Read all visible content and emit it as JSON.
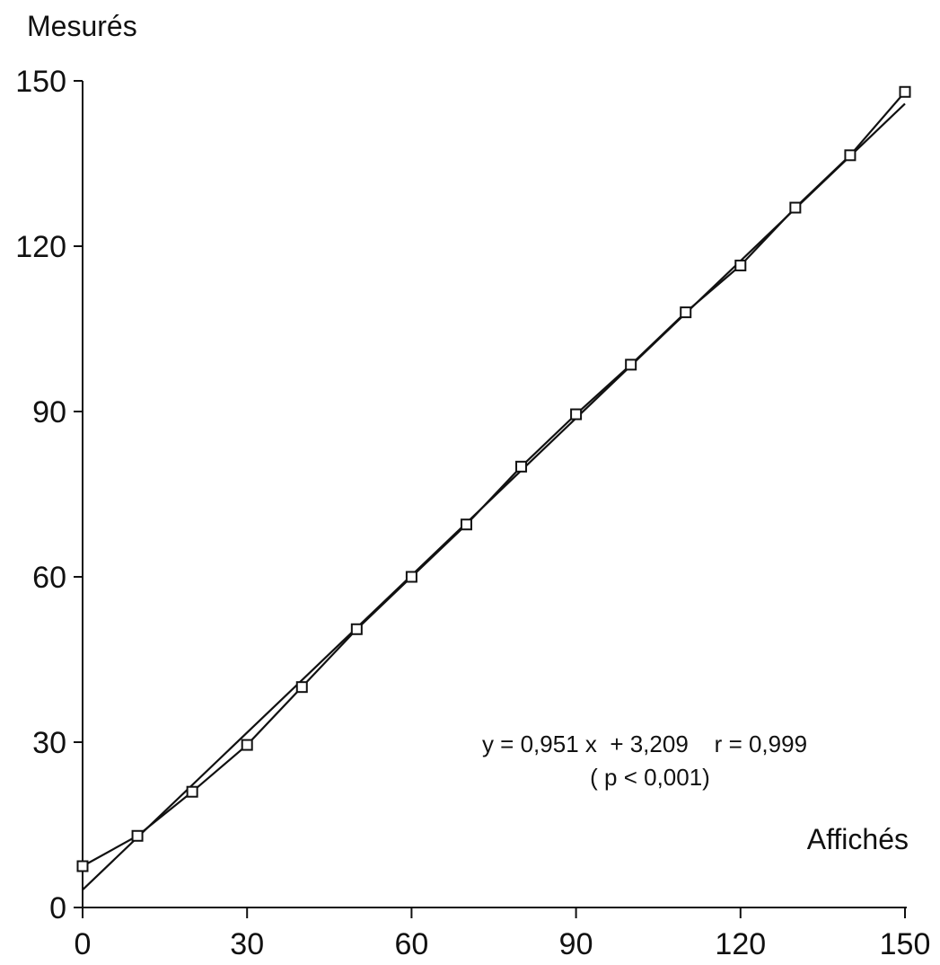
{
  "chart_data": {
    "type": "scatter",
    "title": "",
    "xlabel": "Affichés",
    "ylabel": "Mesurés",
    "xlim": [
      0,
      150
    ],
    "ylim": [
      0,
      150
    ],
    "x_ticks": [
      0,
      30,
      60,
      90,
      120,
      150
    ],
    "y_ticks": [
      0,
      30,
      60,
      90,
      120,
      150
    ],
    "grid": false,
    "legend": "none",
    "series": [
      {
        "marker": "open-square",
        "connected": true,
        "x": [
          0,
          10,
          20,
          30,
          40,
          50,
          60,
          70,
          80,
          90,
          100,
          110,
          120,
          130,
          140,
          150
        ],
        "y": [
          7.5,
          13,
          21,
          29.5,
          40,
          50.5,
          60,
          69.5,
          80,
          89.5,
          98.5,
          108,
          116.5,
          127,
          136.5,
          148
        ]
      }
    ],
    "regression": {
      "slope": 0.951,
      "intercept": 3.209,
      "equation_label": "y = 0,951 x  + 3,209    r = 0,999",
      "p_label": "( p < 0,001)"
    },
    "colors": {
      "ink": "#111111",
      "background": "#ffffff"
    }
  }
}
